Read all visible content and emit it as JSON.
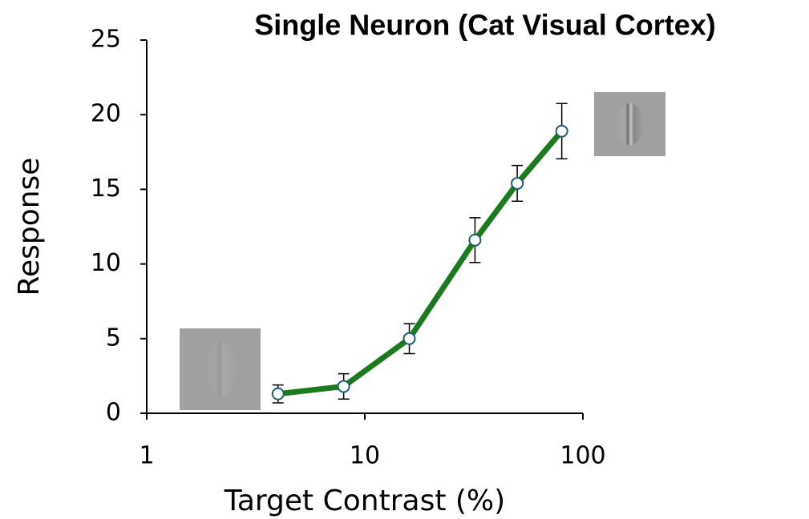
{
  "chart_data": {
    "type": "line",
    "title": "Single Neuron (Cat Visual Cortex)",
    "x_label": "Target Contrast (%)",
    "y_label": "Response",
    "x": [
      4,
      8,
      16,
      32,
      50,
      80
    ],
    "values": [
      1.3,
      1.8,
      5.0,
      11.6,
      15.4,
      18.9
    ],
    "errors": [
      0.6,
      0.85,
      1.0,
      1.5,
      1.2,
      1.85
    ],
    "color": "#1b7a1b",
    "marker_color": "#1f5f6f",
    "xscale": "log",
    "xlim": [
      1,
      100
    ],
    "xticks": [
      1,
      10,
      100
    ],
    "ylim": [
      0,
      25
    ],
    "yticks": [
      0,
      5,
      10,
      15,
      20,
      25
    ],
    "grid": false
  }
}
